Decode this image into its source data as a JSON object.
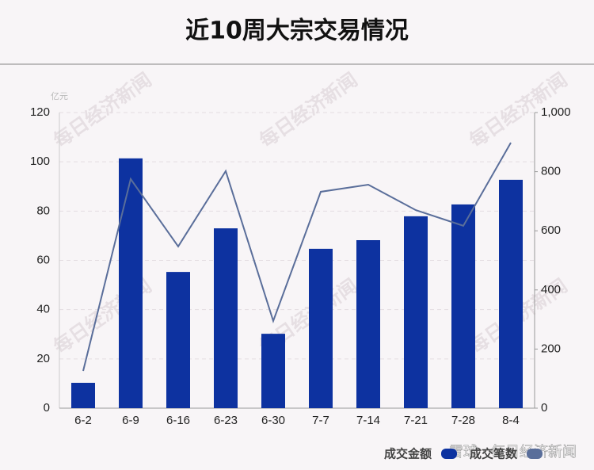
{
  "chart_data": {
    "type": "bar-line",
    "title": "近10周大宗交易情况",
    "y_unit": "亿元",
    "watermark": "每日经济新闻",
    "source": "雪球 · 每日经济新闻",
    "categories": [
      "6-2",
      "6-9",
      "6-16",
      "6-23",
      "6-30",
      "7-7",
      "7-14",
      "7-21",
      "7-28",
      "8-4"
    ],
    "series": [
      {
        "name": "成交金额",
        "type": "bar",
        "color": "#0d32a0",
        "values": [
          10.3,
          101.4,
          55.3,
          73,
          30.2,
          64.7,
          68.2,
          77.9,
          82.7,
          92.7
        ]
      },
      {
        "name": "成交笔数",
        "type": "line",
        "axis": "y2",
        "color": "#5a6e9a",
        "values": [
          126,
          775,
          547,
          802,
          295,
          732,
          756,
          670,
          617,
          898
        ]
      }
    ],
    "ylim": [
      0,
      120
    ],
    "yticks": [
      0,
      20,
      40,
      60,
      80,
      100,
      120
    ],
    "y2lim": [
      0,
      1000
    ],
    "y2ticks": [
      0,
      200,
      400,
      600,
      800,
      {
        "value": 1000,
        "label": "1,000"
      }
    ],
    "grid": true
  }
}
